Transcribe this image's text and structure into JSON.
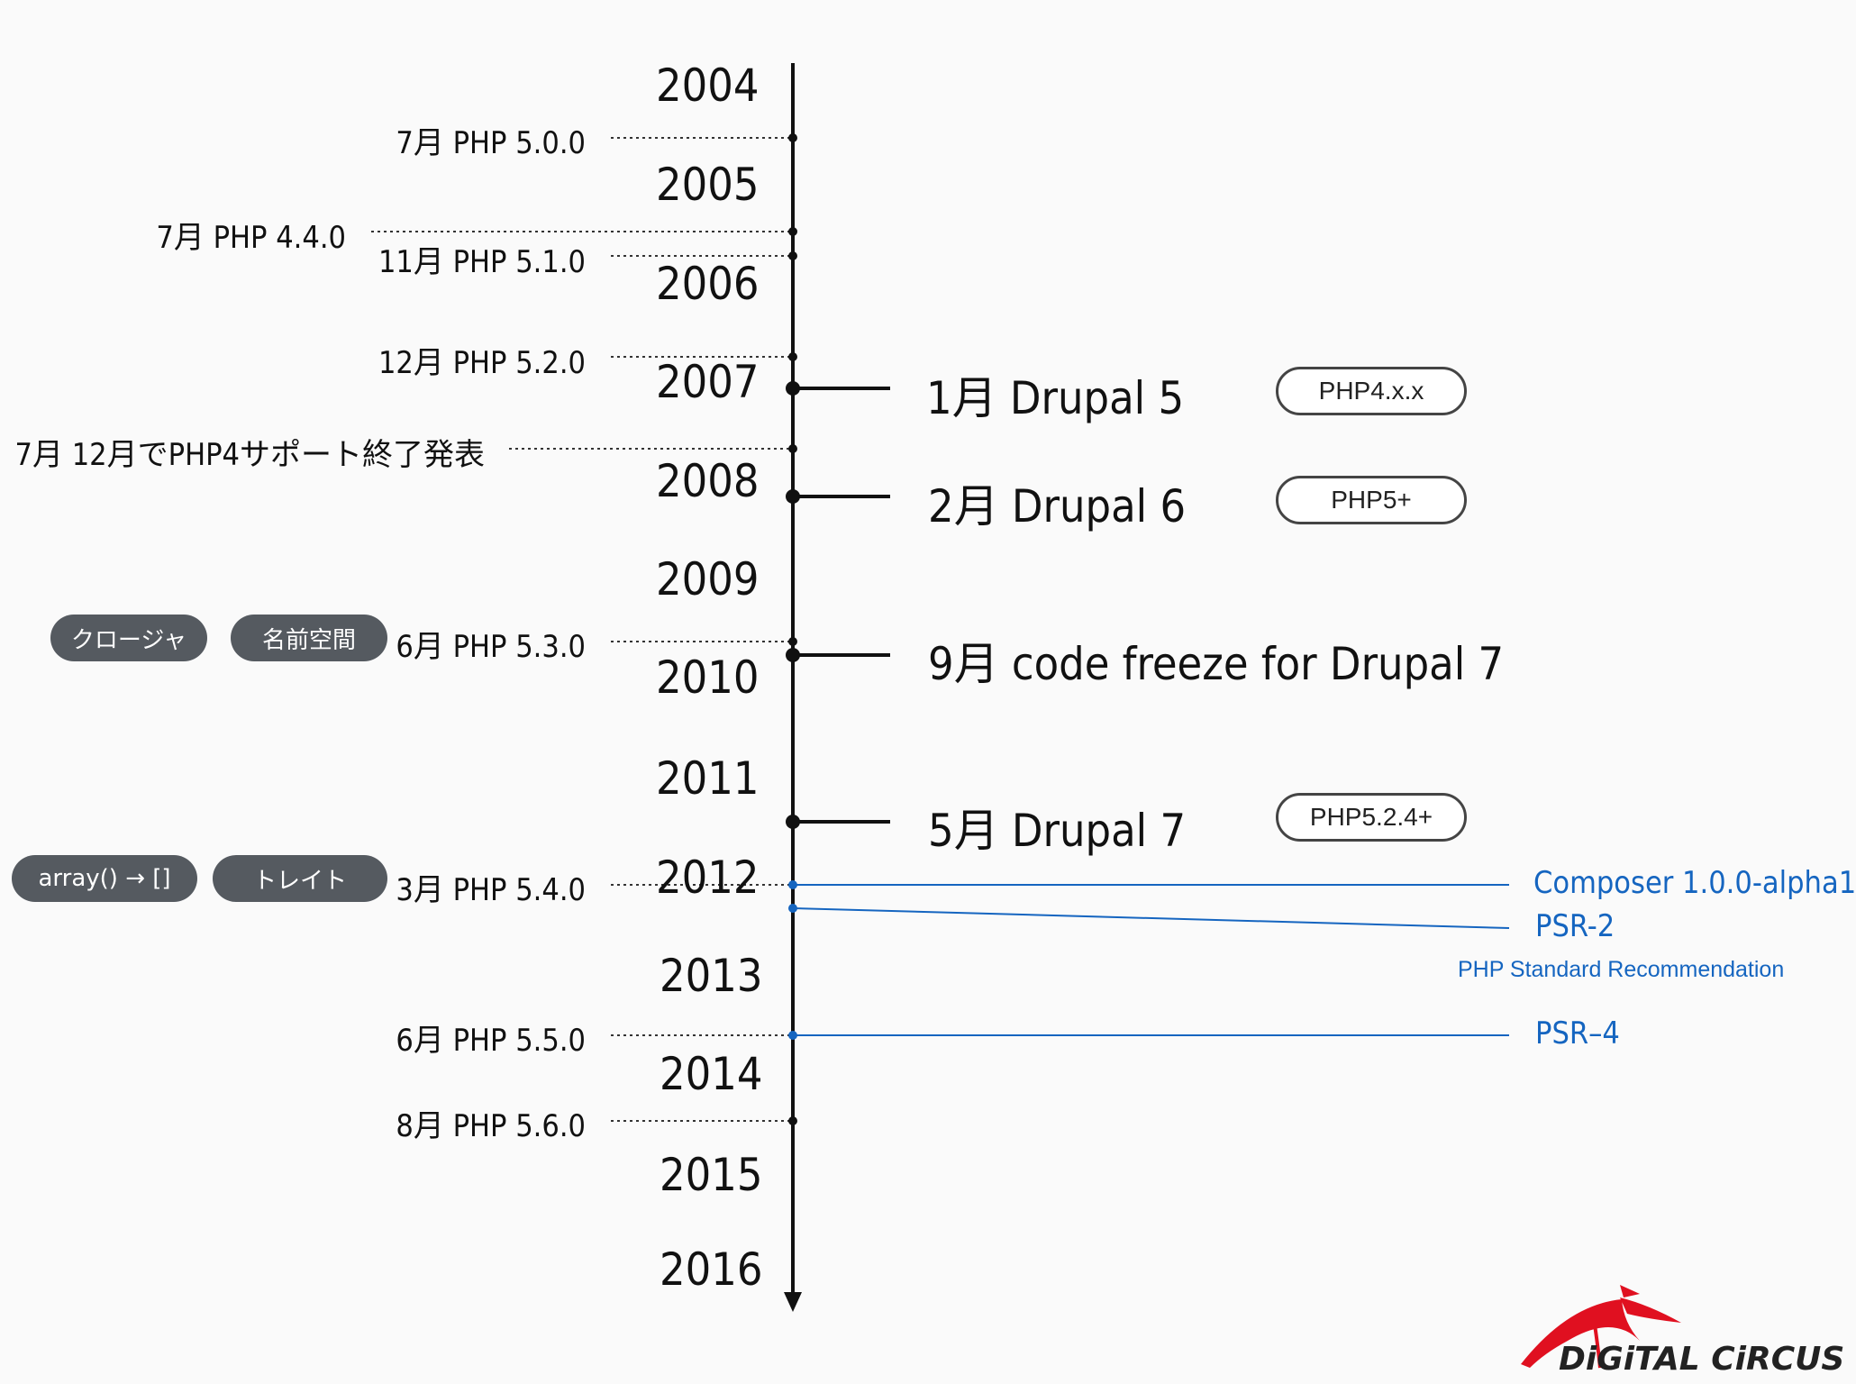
{
  "years": [
    {
      "label": "2004"
    },
    {
      "label": "2005"
    },
    {
      "label": "2006"
    },
    {
      "label": "2007"
    },
    {
      "label": "2008"
    },
    {
      "label": "2009"
    },
    {
      "label": "2010"
    },
    {
      "label": "2011"
    },
    {
      "label": "2012"
    },
    {
      "label": "2013"
    },
    {
      "label": "2014"
    },
    {
      "label": "2015"
    },
    {
      "label": "2016"
    }
  ],
  "php_events": [
    {
      "label": "7月 PHP 5.0.0"
    },
    {
      "label": "7月 PHP 4.4.0"
    },
    {
      "label": "11月 PHP 5.1.0"
    },
    {
      "label": "12月 PHP 5.2.0"
    },
    {
      "label": "7月 12月でPHP4サポート終了発表"
    },
    {
      "label": "6月 PHP 5.3.0"
    },
    {
      "label": "3月 PHP 5.4.0"
    },
    {
      "label": "6月 PHP 5.5.0"
    },
    {
      "label": "8月 PHP 5.6.0"
    }
  ],
  "drupal_events": [
    {
      "label": "1月 Drupal 5",
      "badge": "PHP4.x.x"
    },
    {
      "label": "2月 Drupal 6",
      "badge": "PHP5+"
    },
    {
      "label": "9月 code freeze for Drupal 7",
      "badge": ""
    },
    {
      "label": "5月 Drupal 7",
      "badge": "PHP5.2.4+"
    }
  ],
  "feature_tags": {
    "php53": [
      "クロージャ",
      "名前空間"
    ],
    "php54": [
      "array() → []",
      "トレイト"
    ]
  },
  "composer_events": {
    "composer": "Composer 1.0.0-alpha1",
    "psr2": "PSR-2",
    "psr2_sub": "PHP Standard Recommendation",
    "psr4": "PSR–4"
  },
  "logo": {
    "text": "DiGiTAL CiRCUS"
  },
  "colors": {
    "accent_blue": "#1565c0",
    "pill_bg": "#555a60",
    "logo_red": "#e01020"
  }
}
